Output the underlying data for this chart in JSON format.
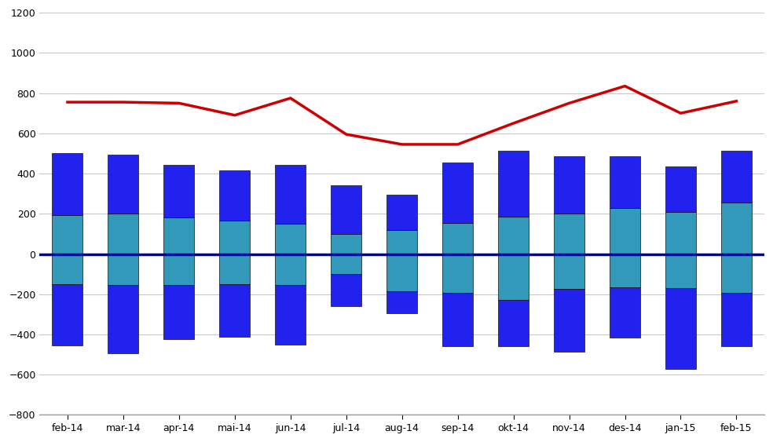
{
  "categories": [
    "feb-14",
    "mar-14",
    "apr-14",
    "mai-14",
    "jun-14",
    "jul-14",
    "aug-14",
    "sep-14",
    "okt-14",
    "nov-14",
    "des-14",
    "jan-15",
    "feb-15"
  ],
  "inn_utgreiing": [
    195,
    200,
    180,
    165,
    150,
    100,
    120,
    155,
    185,
    200,
    230,
    210,
    255
  ],
  "inn_behandling": [
    305,
    295,
    265,
    250,
    295,
    240,
    175,
    300,
    330,
    285,
    255,
    225,
    260
  ],
  "gj_utgreiing": [
    -150,
    -155,
    -155,
    -150,
    -155,
    -100,
    -185,
    -195,
    -230,
    -175,
    -165,
    -170,
    -195
  ],
  "gj_behandling": [
    -305,
    -340,
    -270,
    -260,
    -295,
    -160,
    -110,
    -265,
    -230,
    -310,
    -250,
    -400,
    -265
  ],
  "red_line": [
    755,
    755,
    750,
    690,
    775,
    595,
    545,
    545,
    650,
    750,
    835,
    700,
    760
  ],
  "color_blue": "#2222ee",
  "color_cyan": "#3399bb",
  "color_line": "#cc0000",
  "color_zero_line": "#0000aa",
  "bg_color": "#ffffff",
  "grid_color": "#c8c8c8",
  "ylim_min": -800,
  "ylim_max": 1200,
  "yticks": [
    -800,
    -600,
    -400,
    -200,
    0,
    200,
    400,
    600,
    800,
    1000,
    1200
  ],
  "bar_width": 0.55
}
